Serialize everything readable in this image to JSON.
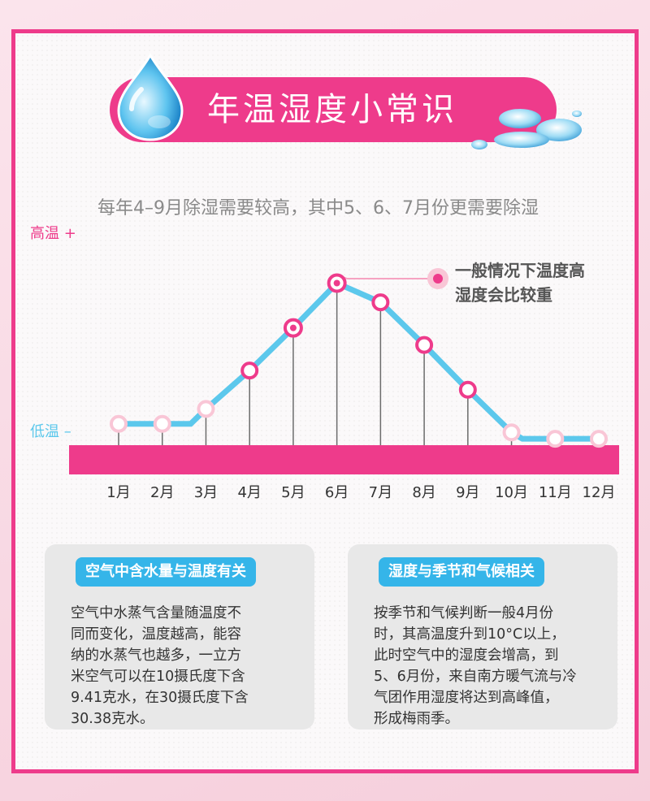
{
  "header": {
    "title": "年温湿度小常识",
    "subtitle": "每年4–9月除湿需要较高，其中5、6、7月份更需要除湿"
  },
  "colors": {
    "accent": "#ee3b8b",
    "line": "#5cc8ec",
    "info_tag": "#35b5e9",
    "low_point": "#f9c6d6"
  },
  "icons": {
    "drop": "water-drop-icon",
    "splash": "water-splash-icon"
  },
  "chart_data": {
    "type": "line",
    "categories": [
      "1月",
      "2月",
      "3月",
      "4月",
      "5月",
      "6月",
      "7月",
      "8月",
      "9月",
      "10月",
      "11月",
      "12月"
    ],
    "values": [
      1.0,
      1.0,
      1.7,
      3.5,
      5.5,
      7.6,
      6.7,
      4.7,
      2.6,
      0.6,
      0.3,
      0.3
    ],
    "ylim": [
      0,
      8
    ],
    "y_high_label": "高温 +",
    "y_low_label": "低温 –",
    "grid": false,
    "highlight_categories": [
      "4月",
      "5月",
      "6月",
      "7月",
      "8月",
      "9月"
    ],
    "peak_highlight_categories": [
      "5月",
      "6月"
    ],
    "annotation": {
      "category": "6月",
      "lines": [
        "一般情况下温度高",
        "湿度会比较重"
      ]
    }
  },
  "info_left": {
    "tag": "空气中含水量与温度有关",
    "lines": [
      "空气中水蒸气含量随温度不",
      "同而变化，温度越高，能容",
      "纳的水蒸气也越多，一立方",
      "米空气可以在10摄氏度下含",
      "9.41克水，在30摄氏度下含",
      "30.38克水。"
    ]
  },
  "info_right": {
    "tag": "湿度与季节和气候相关",
    "lines": [
      "按季节和气候判断一般4月份",
      "时，其高温度升到10°C以上，",
      "此时空气中的湿度会增高，到",
      "5、6月份，来自南方暖气流与冷",
      "气团作用湿度将达到高峰值，",
      "形成梅雨季。"
    ]
  }
}
